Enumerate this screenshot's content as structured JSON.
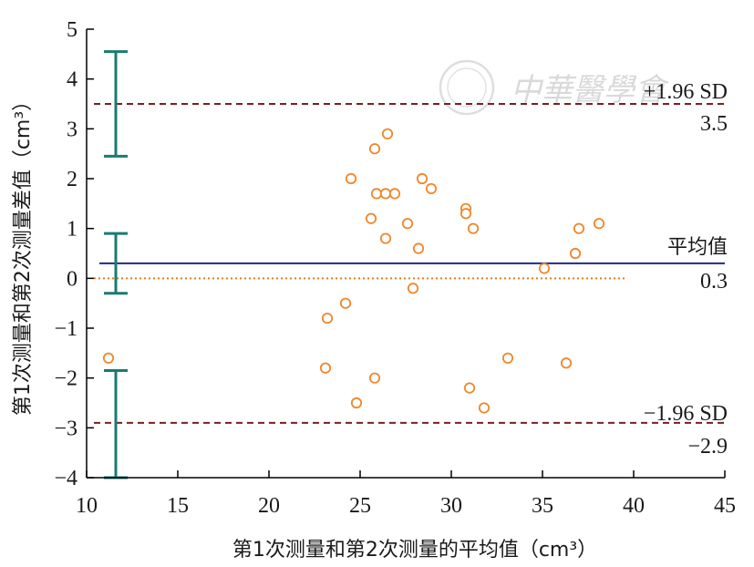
{
  "chart_data": {
    "type": "scatter",
    "title": "",
    "xlabel": "第1次测量和第2次测量的平均值（cm³）",
    "ylabel": "第1次测量和第2次测量差值（cm³）",
    "xlim": [
      10,
      45
    ],
    "ylim": [
      -4,
      5
    ],
    "x_ticks": [
      "10",
      "15",
      "20",
      "25",
      "30",
      "35",
      "40",
      "45"
    ],
    "y_ticks": [
      "5",
      "4",
      "3",
      "2",
      "1",
      "0",
      "−1",
      "−2",
      "−3",
      "−4"
    ],
    "grid": false,
    "points": [
      {
        "x": 11.2,
        "y": -1.6
      },
      {
        "x": 23.1,
        "y": -1.8
      },
      {
        "x": 23.2,
        "y": -0.8
      },
      {
        "x": 24.2,
        "y": -0.5
      },
      {
        "x": 24.5,
        "y": 2.0
      },
      {
        "x": 24.8,
        "y": -2.5
      },
      {
        "x": 25.6,
        "y": 1.2
      },
      {
        "x": 25.8,
        "y": 2.6
      },
      {
        "x": 25.9,
        "y": 1.7
      },
      {
        "x": 25.8,
        "y": -2.0
      },
      {
        "x": 26.4,
        "y": 0.8
      },
      {
        "x": 26.4,
        "y": 1.7
      },
      {
        "x": 26.5,
        "y": 2.9
      },
      {
        "x": 26.9,
        "y": 1.7
      },
      {
        "x": 27.6,
        "y": 1.1
      },
      {
        "x": 27.9,
        "y": -0.2
      },
      {
        "x": 28.2,
        "y": 0.6
      },
      {
        "x": 28.4,
        "y": 2.0
      },
      {
        "x": 28.9,
        "y": 1.8
      },
      {
        "x": 30.8,
        "y": 1.4
      },
      {
        "x": 30.8,
        "y": 1.3
      },
      {
        "x": 31.0,
        "y": -2.2
      },
      {
        "x": 31.2,
        "y": 1.0
      },
      {
        "x": 31.8,
        "y": -2.6
      },
      {
        "x": 33.1,
        "y": -1.6
      },
      {
        "x": 35.1,
        "y": 0.2
      },
      {
        "x": 36.3,
        "y": -1.7
      },
      {
        "x": 36.8,
        "y": 0.5
      },
      {
        "x": 37.0,
        "y": 1.0
      },
      {
        "x": 38.1,
        "y": 1.1
      }
    ],
    "reference_lines": {
      "mean": {
        "label": "平均值",
        "value_label": "0.3",
        "value": 0.3,
        "color": "#1f2a8a",
        "style": "solid"
      },
      "upper": {
        "label": "+1.96 SD",
        "value_label": "3.5",
        "value": 3.5,
        "color": "#7a1f1f",
        "style": "dashed"
      },
      "lower": {
        "label": "−1.96 SD",
        "value_label": "−2.9",
        "value": -2.9,
        "color": "#7a1f1f",
        "style": "dashed"
      },
      "zero": {
        "value": 0,
        "color": "#e87a1e",
        "style": "dotted",
        "x_end": 39.6
      }
    },
    "confidence_bars": {
      "x": 11.6,
      "color": "#1a7a72",
      "intervals": [
        {
          "name": "upper-limit-ci",
          "low": 2.45,
          "high": 4.55
        },
        {
          "name": "mean-ci",
          "low": -0.3,
          "high": 0.9
        },
        {
          "name": "lower-limit-ci",
          "low": -4.0,
          "high": -1.85
        }
      ]
    },
    "point_color": "#f0862a"
  },
  "watermark": {
    "text": "中華醫學會"
  }
}
